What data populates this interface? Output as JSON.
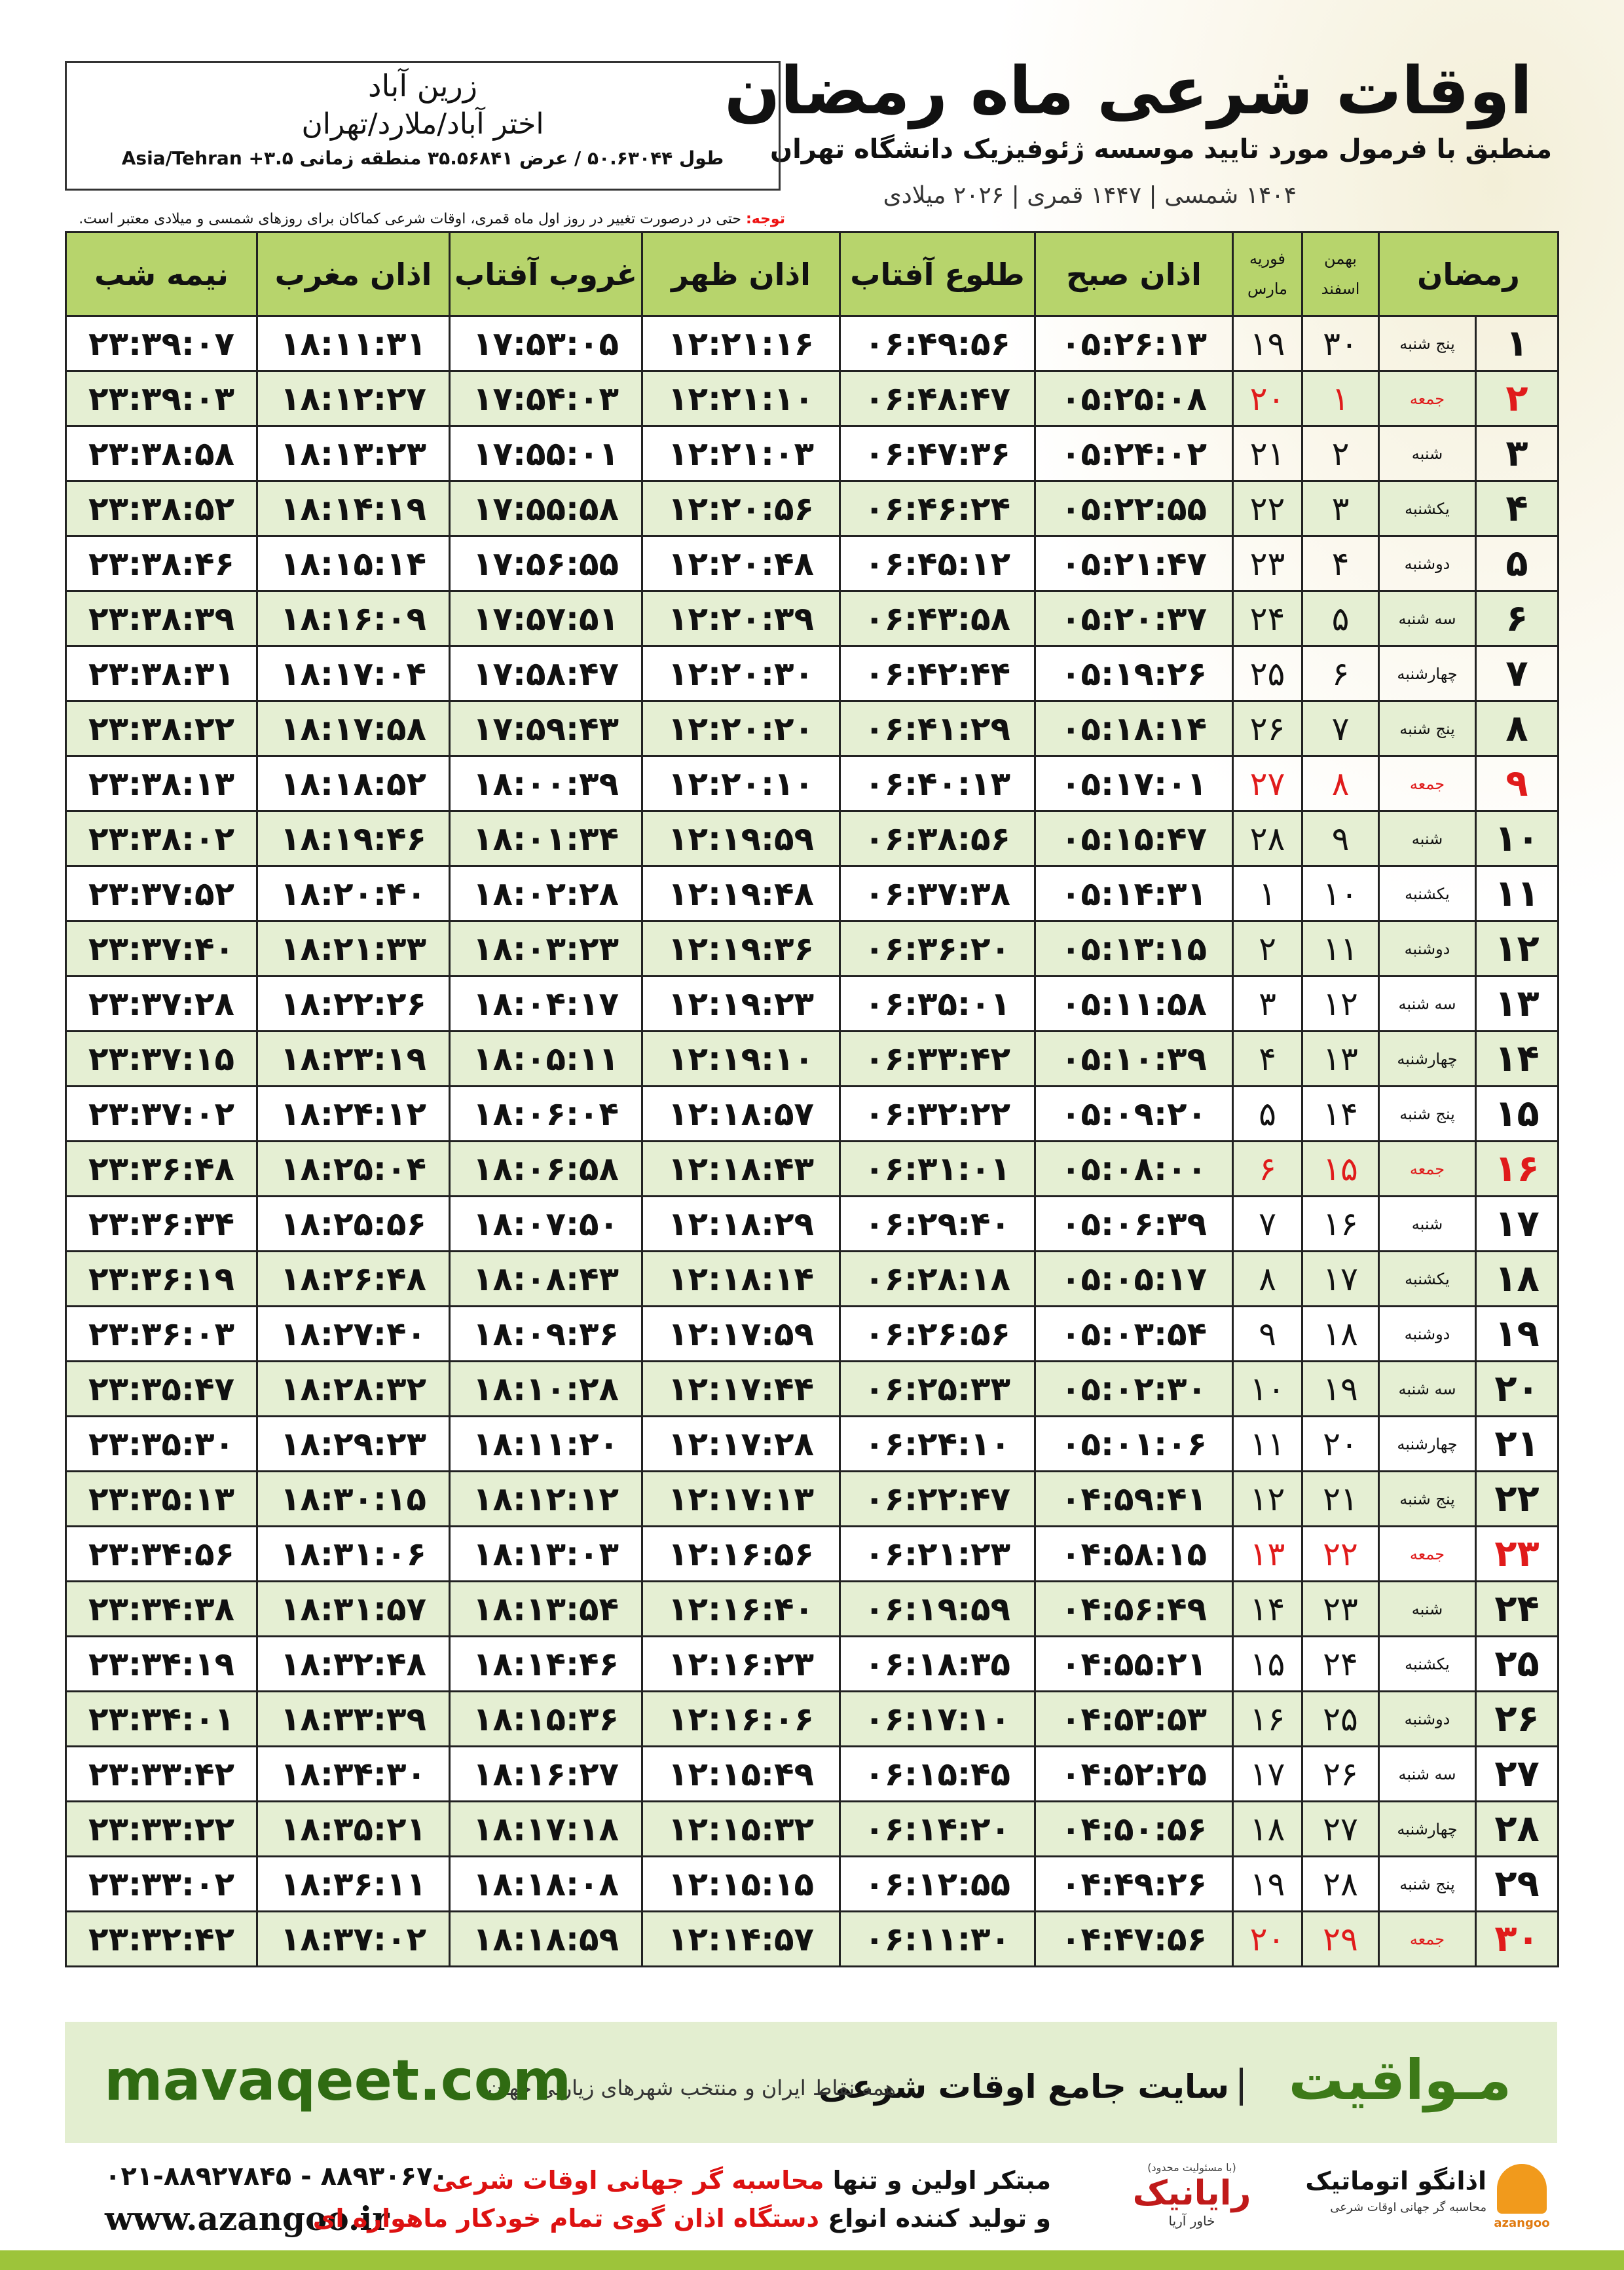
{
  "header": {
    "title": "اوقات شرعی ماه رمضان",
    "subtitle": "منطبق با فرمول مورد تایید موسسه ژئوفیزیک دانشگاه تهران",
    "dates": "۱۴۰۴ شمسی | ۱۴۴۷ قمری | ۲۰۲۶ میلادی"
  },
  "location": {
    "city": "زرین آباد",
    "region": "اختر آباد/ملارد/تهران",
    "coords": "طول ۵۰.۶۳۰۴۴ / عرض ۳۵.۵۶۸۴۱ منطقه زمانی ۳.۵+ Asia/Tehran"
  },
  "note": {
    "label": "توجه:",
    "text": "حتی در درصورت تغییر در روز اول ماه قمری، اوقات شرعی کماکان برای روزهای شمسی و میلادی معتبر است."
  },
  "table": {
    "columns": [
      "رمضان",
      [
        "بهمن",
        "اسفند"
      ],
      [
        "فوریه",
        "مارس"
      ],
      "اذان صبح",
      "طلوع آفتاب",
      "اذان ظهر",
      "غروب آفتاب",
      "اذان مغرب",
      "نیمه شب"
    ],
    "rows": [
      [
        "۱",
        "پنج شنبه",
        "۳۰",
        "۱۹",
        "۰۵:۲۶:۱۳",
        "۰۶:۴۹:۵۶",
        "۱۲:۲۱:۱۶",
        "۱۷:۵۳:۰۵",
        "۱۸:۱۱:۳۱",
        "۲۳:۳۹:۰۷"
      ],
      [
        "۲",
        "جمعه",
        "۱",
        "۲۰",
        "۰۵:۲۵:۰۸",
        "۰۶:۴۸:۴۷",
        "۱۲:۲۱:۱۰",
        "۱۷:۵۴:۰۳",
        "۱۸:۱۲:۲۷",
        "۲۳:۳۹:۰۳"
      ],
      [
        "۳",
        "شنبه",
        "۲",
        "۲۱",
        "۰۵:۲۴:۰۲",
        "۰۶:۴۷:۳۶",
        "۱۲:۲۱:۰۳",
        "۱۷:۵۵:۰۱",
        "۱۸:۱۳:۲۳",
        "۲۳:۳۸:۵۸"
      ],
      [
        "۴",
        "یکشنبه",
        "۳",
        "۲۲",
        "۰۵:۲۲:۵۵",
        "۰۶:۴۶:۲۴",
        "۱۲:۲۰:۵۶",
        "۱۷:۵۵:۵۸",
        "۱۸:۱۴:۱۹",
        "۲۳:۳۸:۵۲"
      ],
      [
        "۵",
        "دوشنبه",
        "۴",
        "۲۳",
        "۰۵:۲۱:۴۷",
        "۰۶:۴۵:۱۲",
        "۱۲:۲۰:۴۸",
        "۱۷:۵۶:۵۵",
        "۱۸:۱۵:۱۴",
        "۲۳:۳۸:۴۶"
      ],
      [
        "۶",
        "سه شنبه",
        "۵",
        "۲۴",
        "۰۵:۲۰:۳۷",
        "۰۶:۴۳:۵۸",
        "۱۲:۲۰:۳۹",
        "۱۷:۵۷:۵۱",
        "۱۸:۱۶:۰۹",
        "۲۳:۳۸:۳۹"
      ],
      [
        "۷",
        "چهارشنبه",
        "۶",
        "۲۵",
        "۰۵:۱۹:۲۶",
        "۰۶:۴۲:۴۴",
        "۱۲:۲۰:۳۰",
        "۱۷:۵۸:۴۷",
        "۱۸:۱۷:۰۴",
        "۲۳:۳۸:۳۱"
      ],
      [
        "۸",
        "پنج شنبه",
        "۷",
        "۲۶",
        "۰۵:۱۸:۱۴",
        "۰۶:۴۱:۲۹",
        "۱۲:۲۰:۲۰",
        "۱۷:۵۹:۴۳",
        "۱۸:۱۷:۵۸",
        "۲۳:۳۸:۲۲"
      ],
      [
        "۹",
        "جمعه",
        "۸",
        "۲۷",
        "۰۵:۱۷:۰۱",
        "۰۶:۴۰:۱۳",
        "۱۲:۲۰:۱۰",
        "۱۸:۰۰:۳۹",
        "۱۸:۱۸:۵۲",
        "۲۳:۳۸:۱۳"
      ],
      [
        "۱۰",
        "شنبه",
        "۹",
        "۲۸",
        "۰۵:۱۵:۴۷",
        "۰۶:۳۸:۵۶",
        "۱۲:۱۹:۵۹",
        "۱۸:۰۱:۳۴",
        "۱۸:۱۹:۴۶",
        "۲۳:۳۸:۰۲"
      ],
      [
        "۱۱",
        "یکشنبه",
        "۱۰",
        "۱",
        "۰۵:۱۴:۳۱",
        "۰۶:۳۷:۳۸",
        "۱۲:۱۹:۴۸",
        "۱۸:۰۲:۲۸",
        "۱۸:۲۰:۴۰",
        "۲۳:۳۷:۵۲"
      ],
      [
        "۱۲",
        "دوشنبه",
        "۱۱",
        "۲",
        "۰۵:۱۳:۱۵",
        "۰۶:۳۶:۲۰",
        "۱۲:۱۹:۳۶",
        "۱۸:۰۳:۲۳",
        "۱۸:۲۱:۳۳",
        "۲۳:۳۷:۴۰"
      ],
      [
        "۱۳",
        "سه شنبه",
        "۱۲",
        "۳",
        "۰۵:۱۱:۵۸",
        "۰۶:۳۵:۰۱",
        "۱۲:۱۹:۲۳",
        "۱۸:۰۴:۱۷",
        "۱۸:۲۲:۲۶",
        "۲۳:۳۷:۲۸"
      ],
      [
        "۱۴",
        "چهارشنبه",
        "۱۳",
        "۴",
        "۰۵:۱۰:۳۹",
        "۰۶:۳۳:۴۲",
        "۱۲:۱۹:۱۰",
        "۱۸:۰۵:۱۱",
        "۱۸:۲۳:۱۹",
        "۲۳:۳۷:۱۵"
      ],
      [
        "۱۵",
        "پنج شنبه",
        "۱۴",
        "۵",
        "۰۵:۰۹:۲۰",
        "۰۶:۳۲:۲۲",
        "۱۲:۱۸:۵۷",
        "۱۸:۰۶:۰۴",
        "۱۸:۲۴:۱۲",
        "۲۳:۳۷:۰۲"
      ],
      [
        "۱۶",
        "جمعه",
        "۱۵",
        "۶",
        "۰۵:۰۸:۰۰",
        "۰۶:۳۱:۰۱",
        "۱۲:۱۸:۴۳",
        "۱۸:۰۶:۵۸",
        "۱۸:۲۵:۰۴",
        "۲۳:۳۶:۴۸"
      ],
      [
        "۱۷",
        "شنبه",
        "۱۶",
        "۷",
        "۰۵:۰۶:۳۹",
        "۰۶:۲۹:۴۰",
        "۱۲:۱۸:۲۹",
        "۱۸:۰۷:۵۰",
        "۱۸:۲۵:۵۶",
        "۲۳:۳۶:۳۴"
      ],
      [
        "۱۸",
        "یکشنبه",
        "۱۷",
        "۸",
        "۰۵:۰۵:۱۷",
        "۰۶:۲۸:۱۸",
        "۱۲:۱۸:۱۴",
        "۱۸:۰۸:۴۳",
        "۱۸:۲۶:۴۸",
        "۲۳:۳۶:۱۹"
      ],
      [
        "۱۹",
        "دوشنبه",
        "۱۸",
        "۹",
        "۰۵:۰۳:۵۴",
        "۰۶:۲۶:۵۶",
        "۱۲:۱۷:۵۹",
        "۱۸:۰۹:۳۶",
        "۱۸:۲۷:۴۰",
        "۲۳:۳۶:۰۳"
      ],
      [
        "۲۰",
        "سه شنبه",
        "۱۹",
        "۱۰",
        "۰۵:۰۲:۳۰",
        "۰۶:۲۵:۳۳",
        "۱۲:۱۷:۴۴",
        "۱۸:۱۰:۲۸",
        "۱۸:۲۸:۳۲",
        "۲۳:۳۵:۴۷"
      ],
      [
        "۲۱",
        "چهارشنبه",
        "۲۰",
        "۱۱",
        "۰۵:۰۱:۰۶",
        "۰۶:۲۴:۱۰",
        "۱۲:۱۷:۲۸",
        "۱۸:۱۱:۲۰",
        "۱۸:۲۹:۲۳",
        "۲۳:۳۵:۳۰"
      ],
      [
        "۲۲",
        "پنج شنبه",
        "۲۱",
        "۱۲",
        "۰۴:۵۹:۴۱",
        "۰۶:۲۲:۴۷",
        "۱۲:۱۷:۱۳",
        "۱۸:۱۲:۱۲",
        "۱۸:۳۰:۱۵",
        "۲۳:۳۵:۱۳"
      ],
      [
        "۲۳",
        "جمعه",
        "۲۲",
        "۱۳",
        "۰۴:۵۸:۱۵",
        "۰۶:۲۱:۲۳",
        "۱۲:۱۶:۵۶",
        "۱۸:۱۳:۰۳",
        "۱۸:۳۱:۰۶",
        "۲۳:۳۴:۵۶"
      ],
      [
        "۲۴",
        "شنبه",
        "۲۳",
        "۱۴",
        "۰۴:۵۶:۴۹",
        "۰۶:۱۹:۵۹",
        "۱۲:۱۶:۴۰",
        "۱۸:۱۳:۵۴",
        "۱۸:۳۱:۵۷",
        "۲۳:۳۴:۳۸"
      ],
      [
        "۲۵",
        "یکشنبه",
        "۲۴",
        "۱۵",
        "۰۴:۵۵:۲۱",
        "۰۶:۱۸:۳۵",
        "۱۲:۱۶:۲۳",
        "۱۸:۱۴:۴۶",
        "۱۸:۳۲:۴۸",
        "۲۳:۳۴:۱۹"
      ],
      [
        "۲۶",
        "دوشنبه",
        "۲۵",
        "۱۶",
        "۰۴:۵۳:۵۳",
        "۰۶:۱۷:۱۰",
        "۱۲:۱۶:۰۶",
        "۱۸:۱۵:۳۶",
        "۱۸:۳۳:۳۹",
        "۲۳:۳۴:۰۱"
      ],
      [
        "۲۷",
        "سه شنبه",
        "۲۶",
        "۱۷",
        "۰۴:۵۲:۲۵",
        "۰۶:۱۵:۴۵",
        "۱۲:۱۵:۴۹",
        "۱۸:۱۶:۲۷",
        "۱۸:۳۴:۳۰",
        "۲۳:۳۳:۴۲"
      ],
      [
        "۲۸",
        "چهارشنبه",
        "۲۷",
        "۱۸",
        "۰۴:۵۰:۵۶",
        "۰۶:۱۴:۲۰",
        "۱۲:۱۵:۳۲",
        "۱۸:۱۷:۱۸",
        "۱۸:۳۵:۲۱",
        "۲۳:۳۳:۲۲"
      ],
      [
        "۲۹",
        "پنج شنبه",
        "۲۸",
        "۱۹",
        "۰۴:۴۹:۲۶",
        "۰۶:۱۲:۵۵",
        "۱۲:۱۵:۱۵",
        "۱۸:۱۸:۰۸",
        "۱۸:۳۶:۱۱",
        "۲۳:۳۳:۰۲"
      ],
      [
        "۳۰",
        "جمعه",
        "۲۹",
        "۲۰",
        "۰۴:۴۷:۵۶",
        "۰۶:۱۱:۳۰",
        "۱۲:۱۴:۵۷",
        "۱۸:۱۸:۵۹",
        "۱۸:۳۷:۰۲",
        "۲۳:۳۲:۴۲"
      ]
    ]
  },
  "banner": {
    "brand": "مـواقیت",
    "tagline": "سایت جامع اوقات شرعی",
    "subline": "همه نقاط ایران و منتخب شهرهای زیارتی جهان",
    "url": "mavaqeet.com"
  },
  "footer": {
    "phones": "۰۲۱-۸۸۹۲۷۸۴۵ - ۸۸۹۳۰۶۷۰",
    "website": "www.azangoo.ir",
    "line1_start": "مبتکر اولین و تنها",
    "line1_highlight": "محاسبه گر جهانی اوقات شرعی",
    "line2_start": "و تولید کننده انواع",
    "line2_highlight": "دستگاه اذان گوی تمام خودکار ماهواره ای",
    "rayanik_note": "(با مسئولیت محدود)",
    "rayanik": "رایانیک",
    "rayanik_sub": "خاور آریا",
    "azangoo_name": "اذانگو اتوماتیک",
    "azangoo_sub": "محاسبه گر جهانی اوقات شرعی",
    "azangoo_latin": "azangoo"
  }
}
